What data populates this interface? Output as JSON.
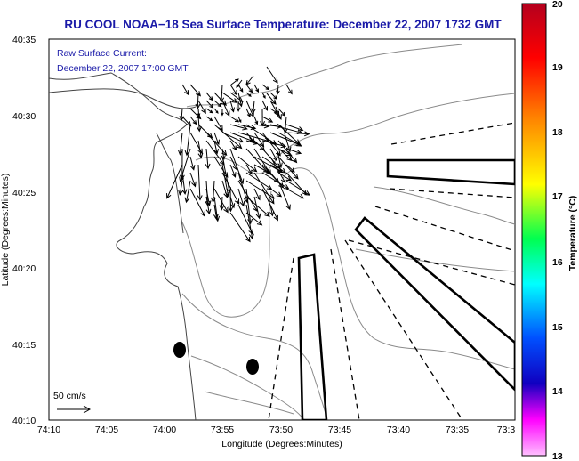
{
  "title": "RU COOL  NOAA−18  Sea Surface Temperature:  December 22, 2007 1732 GMT",
  "current_legend": {
    "line1": "Raw Surface Current:",
    "line2": "December 22, 2007 17:00 GMT"
  },
  "scale_label": "50 cm/s",
  "x_axis": {
    "label": "Longitude (Degrees:Minutes)",
    "ticks": [
      "74:10",
      "74:05",
      "74:00",
      "73:55",
      "73:50",
      "73:45",
      "73:40",
      "73:35",
      "73:3"
    ]
  },
  "y_axis": {
    "label": "Latitude (Degrees:Minutes)",
    "ticks": [
      "40:35",
      "40:30",
      "40:25",
      "40:20",
      "40:15",
      "40:10"
    ]
  },
  "colorbar": {
    "label": "Temperature (°C)",
    "ticks": [
      "20",
      "19",
      "18",
      "17",
      "16",
      "15",
      "14",
      "13"
    ],
    "colors": [
      "#c8001e",
      "#ff0000",
      "#ff8000",
      "#ffff00",
      "#00ff40",
      "#00ffff",
      "#0050ff",
      "#1000c0",
      "#ff00ff",
      "#ffb0ff"
    ]
  },
  "icons": {
    "arrows": "current-vector-arrows",
    "markers": "buoy-marker"
  }
}
